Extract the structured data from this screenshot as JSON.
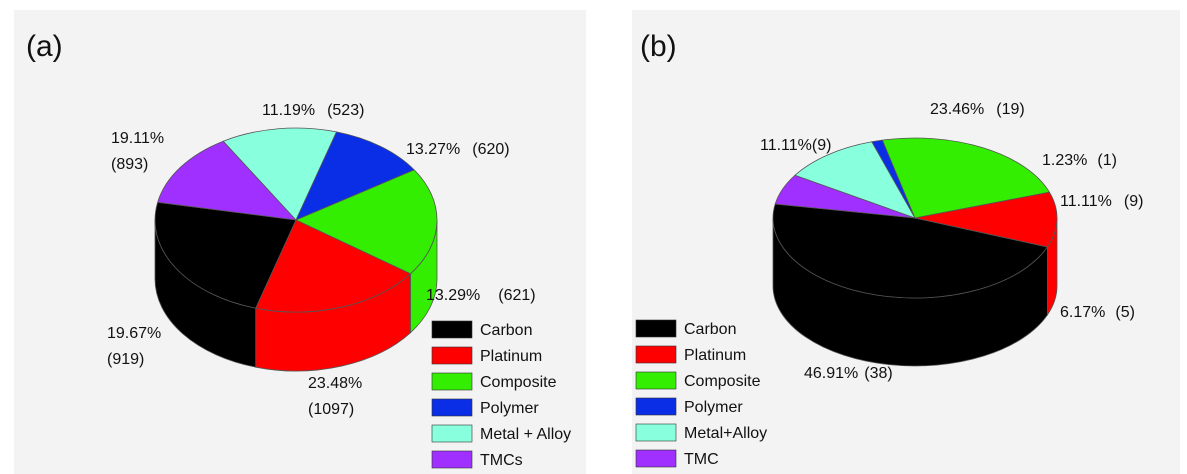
{
  "colors": {
    "carbon": "#000000",
    "platinum": "#ff0000",
    "composite": "#33ee00",
    "polymer": "#0a2ee6",
    "metal": "#88ffdd",
    "tmc": "#a030ff",
    "edge": "#555555"
  },
  "chart_data": [
    {
      "type": "pie",
      "panel_label": "(a)",
      "style": "3d",
      "legend": [
        "Carbon",
        "Platinum",
        "Composite",
        "Polymer",
        "Metal + Alloy",
        "TMCs"
      ],
      "slices": [
        {
          "name": "Carbon",
          "percent": 23.48,
          "count": 1097,
          "label_pct": "23.48%",
          "label_count": "(1097)"
        },
        {
          "name": "TMCs",
          "percent": 13.29,
          "count": 621,
          "label_pct": "13.29%",
          "label_count": "(621)"
        },
        {
          "name": "Metal + Alloy",
          "percent": 13.27,
          "count": 620,
          "label_pct": "13.27%",
          "label_count": "(620)"
        },
        {
          "name": "Polymer",
          "percent": 11.19,
          "count": 523,
          "label_pct": "11.19%",
          "label_count": "(523)"
        },
        {
          "name": "Composite",
          "percent": 19.11,
          "count": 893,
          "label_pct": "19.11%",
          "label_count": "(893)"
        },
        {
          "name": "Platinum",
          "percent": 19.67,
          "count": 919,
          "label_pct": "19.67%",
          "label_count": "(919)"
        }
      ]
    },
    {
      "type": "pie",
      "panel_label": "(b)",
      "style": "3d",
      "legend": [
        "Carbon",
        "Platinum",
        "Composite",
        "Polymer",
        "Metal+Alloy",
        "TMC"
      ],
      "slices": [
        {
          "name": "Carbon",
          "percent": 46.91,
          "count": 38,
          "label_pct": "46.91%",
          "label_count": "(38)"
        },
        {
          "name": "TMC",
          "percent": 6.17,
          "count": 5,
          "label_pct": "6.17%",
          "label_count": "(5)"
        },
        {
          "name": "Metal+Alloy",
          "percent": 11.11,
          "count": 9,
          "label_pct": "11.11%",
          "label_count": "(9)"
        },
        {
          "name": "Polymer",
          "percent": 1.23,
          "count": 1,
          "label_pct": "1.23%",
          "label_count": "(1)"
        },
        {
          "name": "Composite",
          "percent": 23.46,
          "count": 19,
          "label_pct": "23.46%",
          "label_count": "(19)"
        },
        {
          "name": "Platinum",
          "percent": 11.11,
          "count": 9,
          "label_pct": "11.11%",
          "label_count": "(9)"
        }
      ]
    }
  ]
}
